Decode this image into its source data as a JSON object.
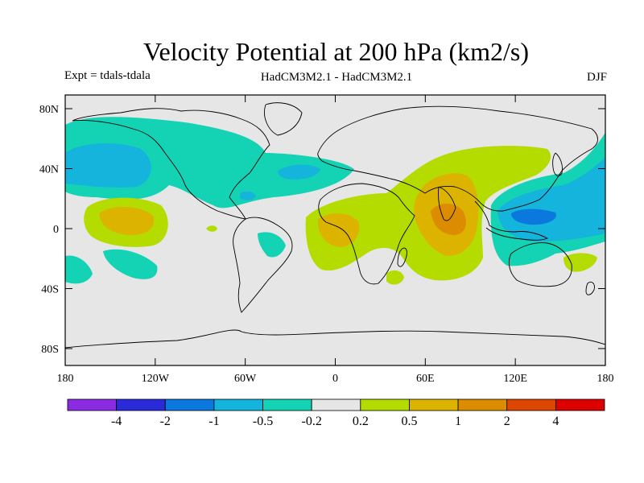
{
  "title": "Velocity Potential at 200 hPa (km2/s)",
  "subtitle_left": "Expt = tdals-tdala",
  "subtitle_center": "HadCM3M2.1 - HadCM3M2.1",
  "subtitle_right": "DJF",
  "map": {
    "lat_ticks": [
      "80N",
      "40N",
      "0",
      "40S",
      "80S"
    ],
    "lon_ticks": [
      "180",
      "120W",
      "60W",
      "0",
      "60E",
      "120E",
      "180"
    ],
    "background_color": "#e6e6e6"
  },
  "colorbar": {
    "colors": [
      "#8a2be2",
      "#2a2ad8",
      "#0a78dc",
      "#14b4dc",
      "#14d2b4",
      "#e6e6e6",
      "#b4dc00",
      "#dcb400",
      "#dc8c00",
      "#dc4600",
      "#dc0000"
    ],
    "labels": [
      "-4",
      "-2",
      "-1",
      "-0.5",
      "-0.2",
      "0.2",
      "0.5",
      "1",
      "2",
      "4"
    ]
  }
}
